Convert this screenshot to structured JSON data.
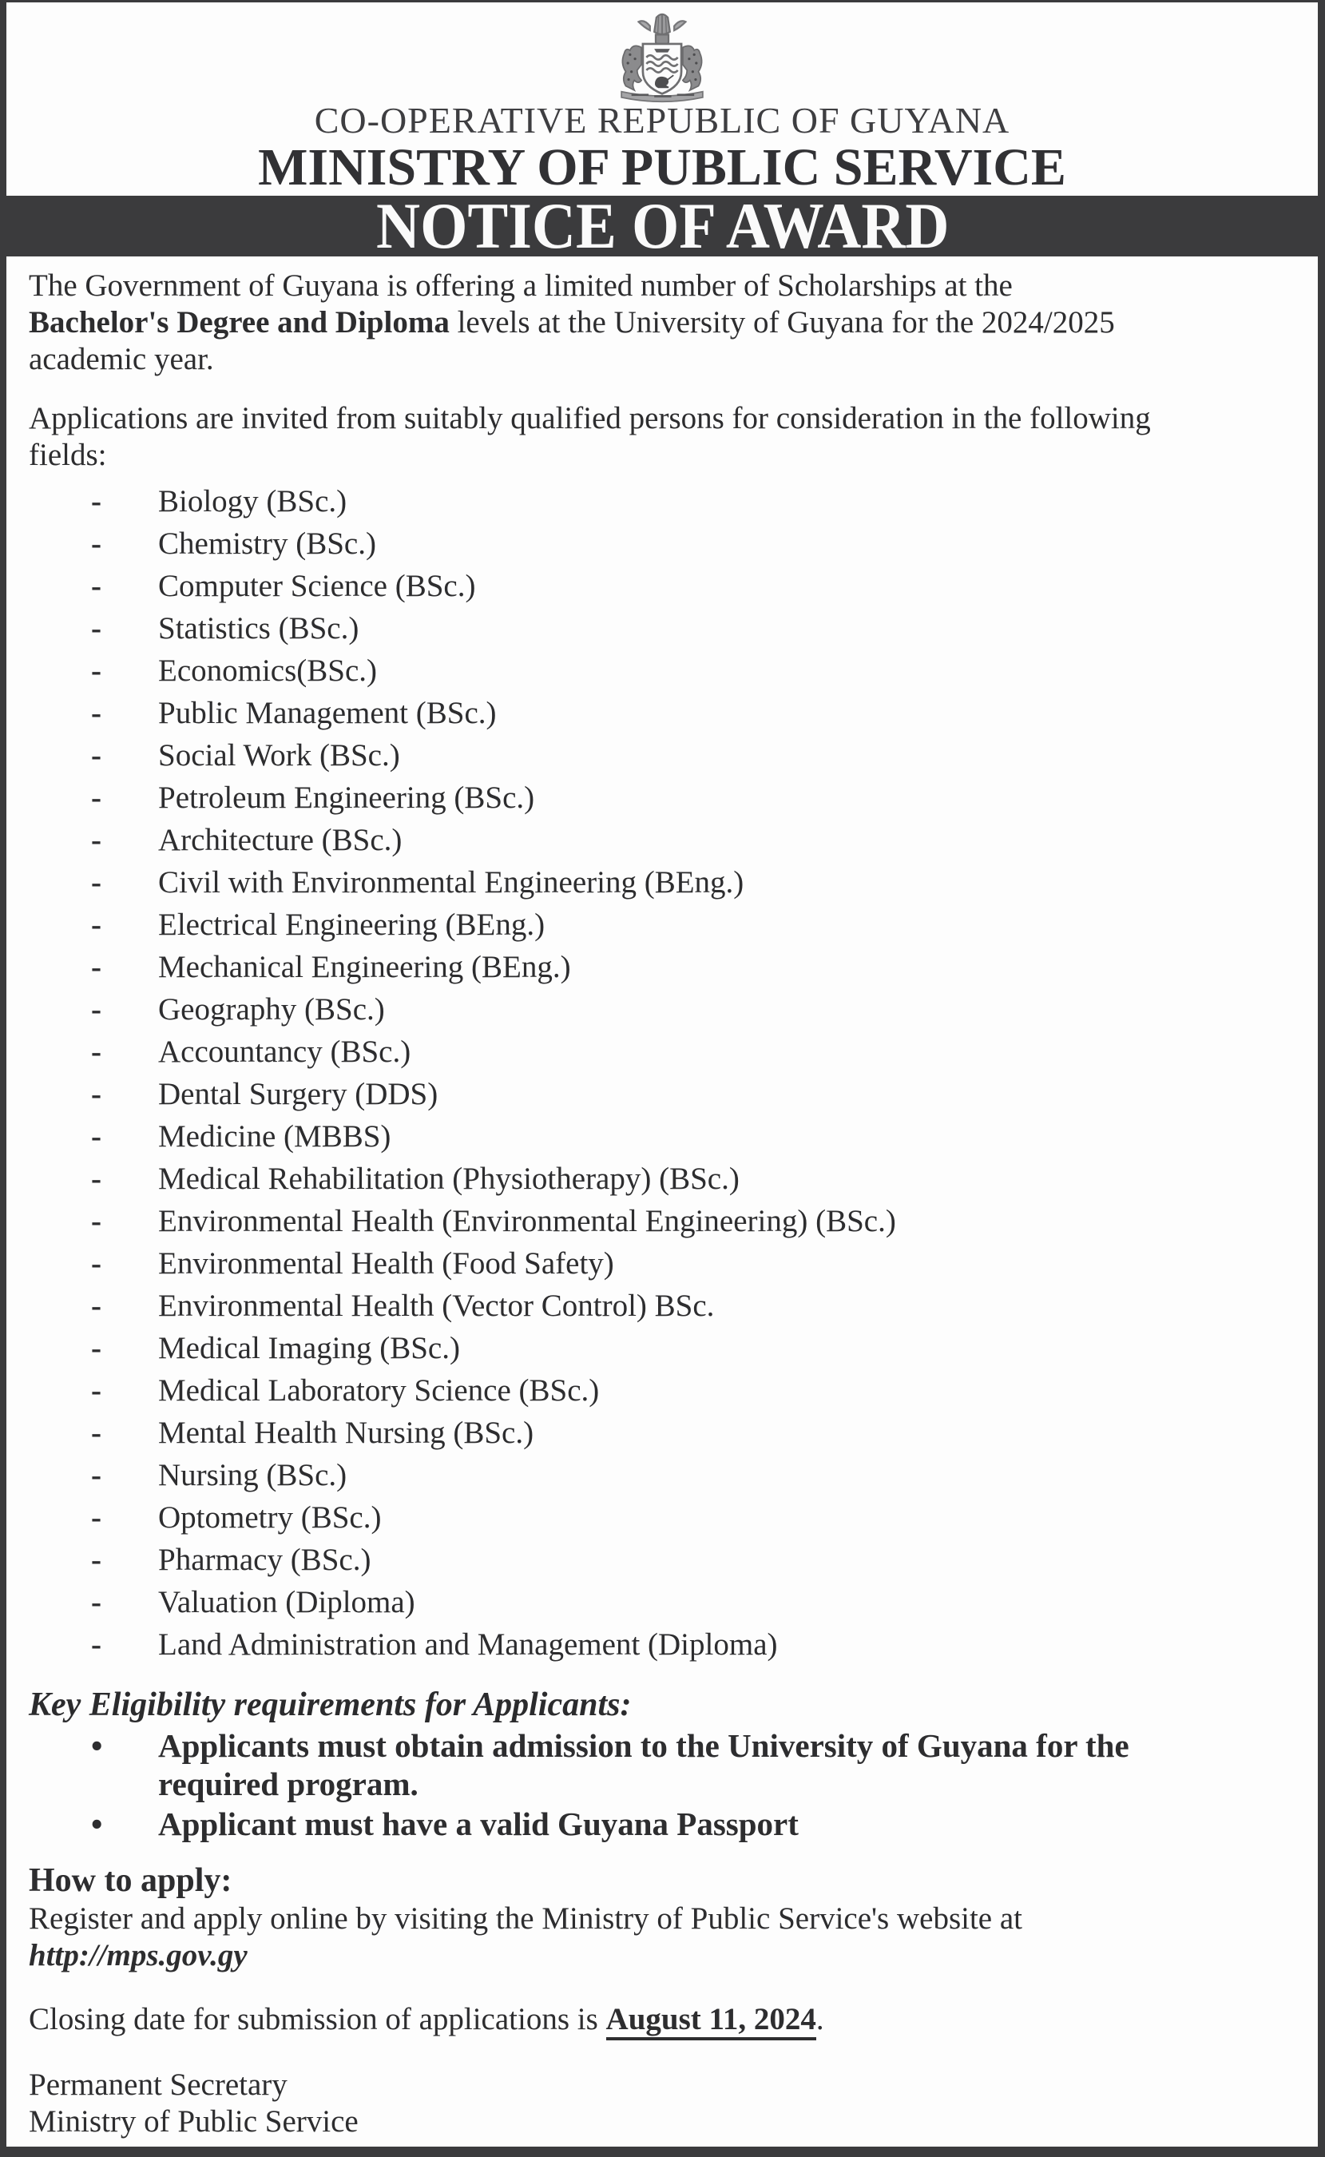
{
  "colors": {
    "charcoal": "#3b3b3d",
    "paper": "#fdfdfd",
    "ink": "#2d2d2f"
  },
  "header": {
    "emblem": "guyana-coat-of-arms",
    "country": "CO-OPERATIVE REPUBLIC OF GUYANA",
    "ministry": "MINISTRY OF PUBLIC SERVICE"
  },
  "banner": {
    "title": "NOTICE OF AWARD"
  },
  "intro": {
    "lines": [
      [
        {
          "t": "The Government of Guyana is offering a limited number of Scholarships at the"
        }
      ],
      [
        {
          "t": "Bachelor's Degree and Diploma",
          "b": true
        },
        {
          "t": " levels at the University of Guyana for the 2024/2025"
        }
      ],
      [
        {
          "t": "academic year."
        }
      ]
    ]
  },
  "invitation": {
    "lines": [
      [
        {
          "t": "Applications are invited from suitably qualified persons for consideration in the following"
        }
      ],
      [
        {
          "t": "fields:"
        }
      ]
    ]
  },
  "fields": {
    "marker": "-",
    "items": [
      "Biology (BSc.)",
      "Chemistry (BSc.)",
      "Computer Science (BSc.)",
      "Statistics (BSc.)",
      "Economics(BSc.)",
      "Public Management (BSc.)",
      "Social Work (BSc.)",
      "Petroleum Engineering (BSc.)",
      "Architecture (BSc.)",
      "Civil with Environmental Engineering (BEng.)",
      "Electrical Engineering (BEng.)",
      "Mechanical Engineering (BEng.)",
      "Geography (BSc.)",
      "Accountancy (BSc.)",
      "Dental Surgery (DDS)",
      "Medicine (MBBS)",
      "Medical Rehabilitation (Physiotherapy) (BSc.)",
      "Environmental Health (Environmental Engineering) (BSc.)",
      "Environmental Health (Food Safety)",
      "Environmental Health (Vector Control) BSc.",
      "Medical Imaging (BSc.)",
      "Medical Laboratory Science (BSc.)",
      "Mental Health Nursing (BSc.)",
      "Nursing (BSc.)",
      "Optometry (BSc.)",
      "Pharmacy (BSc.)",
      "Valuation (Diploma)",
      "Land Administration and Management (Diploma)"
    ]
  },
  "eligibility": {
    "heading": "Key Eligibility requirements for Applicants:",
    "bullet_marker": "•",
    "bullet1": {
      "lines": [
        [
          {
            "t": "Applicants must obtain admission to the University of Guyana for the",
            "b": true
          }
        ],
        [
          {
            "t": "required program.",
            "b": true
          }
        ]
      ]
    },
    "bullet2": {
      "lines": [
        [
          {
            "t": "Applicant must have a valid Guyana Passport",
            "b": true
          }
        ]
      ]
    }
  },
  "how_to_apply": {
    "heading": "How to apply:",
    "lines": [
      [
        {
          "t": "Register and apply online by visiting the Ministry of Public Service's website at"
        }
      ],
      [
        {
          "t": "http://mps.gov.gy",
          "b": true,
          "i": true
        }
      ]
    ]
  },
  "closing": {
    "lines": [
      [
        {
          "t": "Closing date for submission of applications is "
        },
        {
          "t": "August 11, 2024",
          "b": true,
          "u": true
        },
        {
          "t": "."
        }
      ]
    ]
  },
  "signature": {
    "lines": [
      [
        {
          "t": "Permanent Secretary"
        }
      ],
      [
        {
          "t": "Ministry of Public Service"
        }
      ]
    ]
  }
}
